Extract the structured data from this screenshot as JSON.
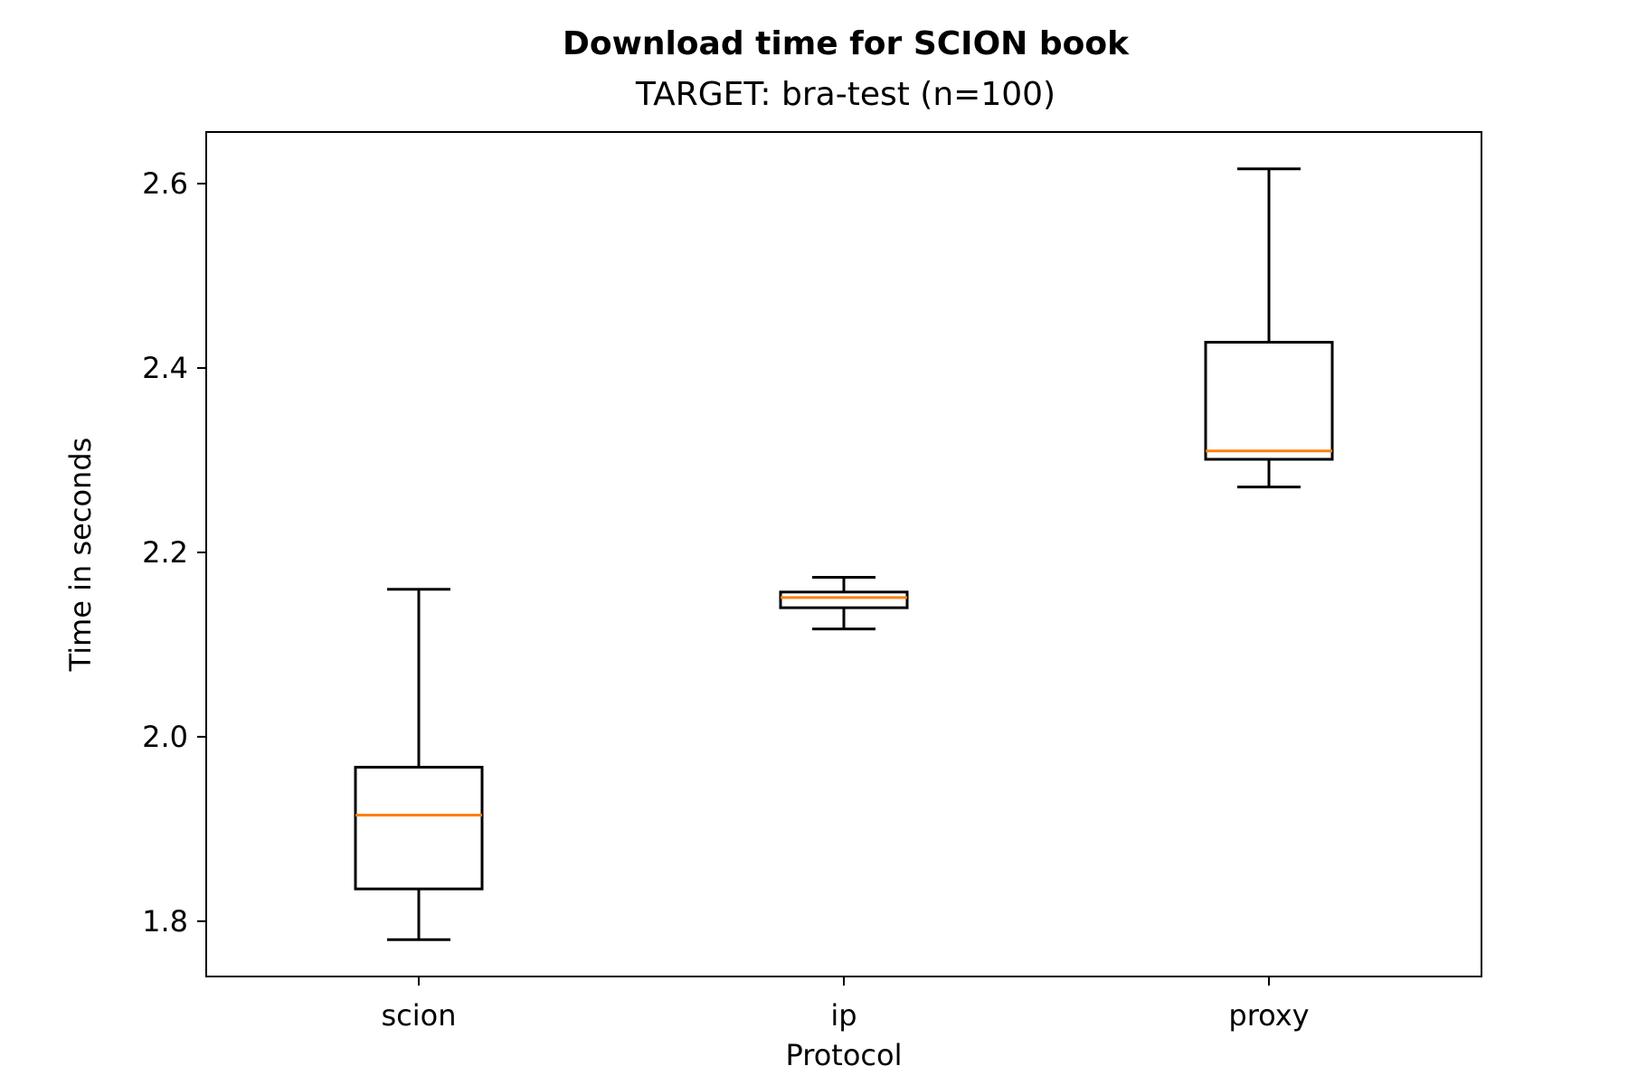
{
  "chart_data": {
    "type": "box",
    "title": "Download time for SCION book",
    "subtitle": "TARGET: bra-test (n=100)",
    "xlabel": "Protocol",
    "ylabel": "Time in seconds",
    "categories": [
      "scion",
      "ip",
      "proxy"
    ],
    "boxes": [
      {
        "category": "scion",
        "whisker_low": 1.78,
        "q1": 1.835,
        "median": 1.915,
        "q3": 1.967,
        "whisker_high": 2.16
      },
      {
        "category": "ip",
        "whisker_low": 2.117,
        "q1": 2.14,
        "median": 2.151,
        "q3": 2.157,
        "whisker_high": 2.173
      },
      {
        "category": "proxy",
        "whisker_low": 2.271,
        "q1": 2.301,
        "median": 2.31,
        "q3": 2.428,
        "whisker_high": 2.616
      }
    ],
    "yticks": [
      "1.8",
      "2.0",
      "2.2",
      "2.4",
      "2.6"
    ],
    "ylim": [
      1.74,
      2.656
    ],
    "grid": false,
    "colors": {
      "box": "#000000",
      "median": "#ff7f0e"
    }
  }
}
